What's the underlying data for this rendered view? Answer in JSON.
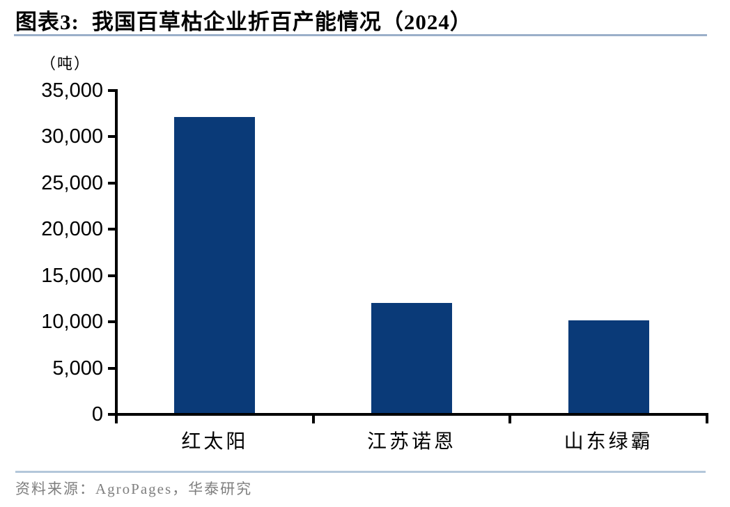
{
  "header": {
    "title_prefix": "图表3:",
    "title_text": "我国百草枯企业折百产能情况（2024）"
  },
  "chart_data": {
    "type": "bar",
    "title": "我国百草枯企业折百产能情况（2024）",
    "unit_label": "（吨）",
    "categories": [
      "红太阳",
      "江苏诺恩",
      "山东绿霸"
    ],
    "values": [
      32000,
      11900,
      10000
    ],
    "ylabel": "（吨）",
    "xlabel": "",
    "ylim": [
      0,
      35000
    ],
    "ytick_interval": 5000,
    "ytick_labels": [
      "0",
      "5,000",
      "10,000",
      "15,000",
      "20,000",
      "25,000",
      "30,000",
      "35,000"
    ],
    "grid": false,
    "legend_position": "none",
    "bar_color": "#0a3a78"
  },
  "footer": {
    "source_text": "资料来源：AgroPages，华泰研究"
  },
  "colors": {
    "bar": "#0a3a78",
    "axis": "#000000",
    "title_underline": "#9aafc9",
    "footer_divider": "#b3c7da",
    "source_text": "#7f7f7f"
  }
}
